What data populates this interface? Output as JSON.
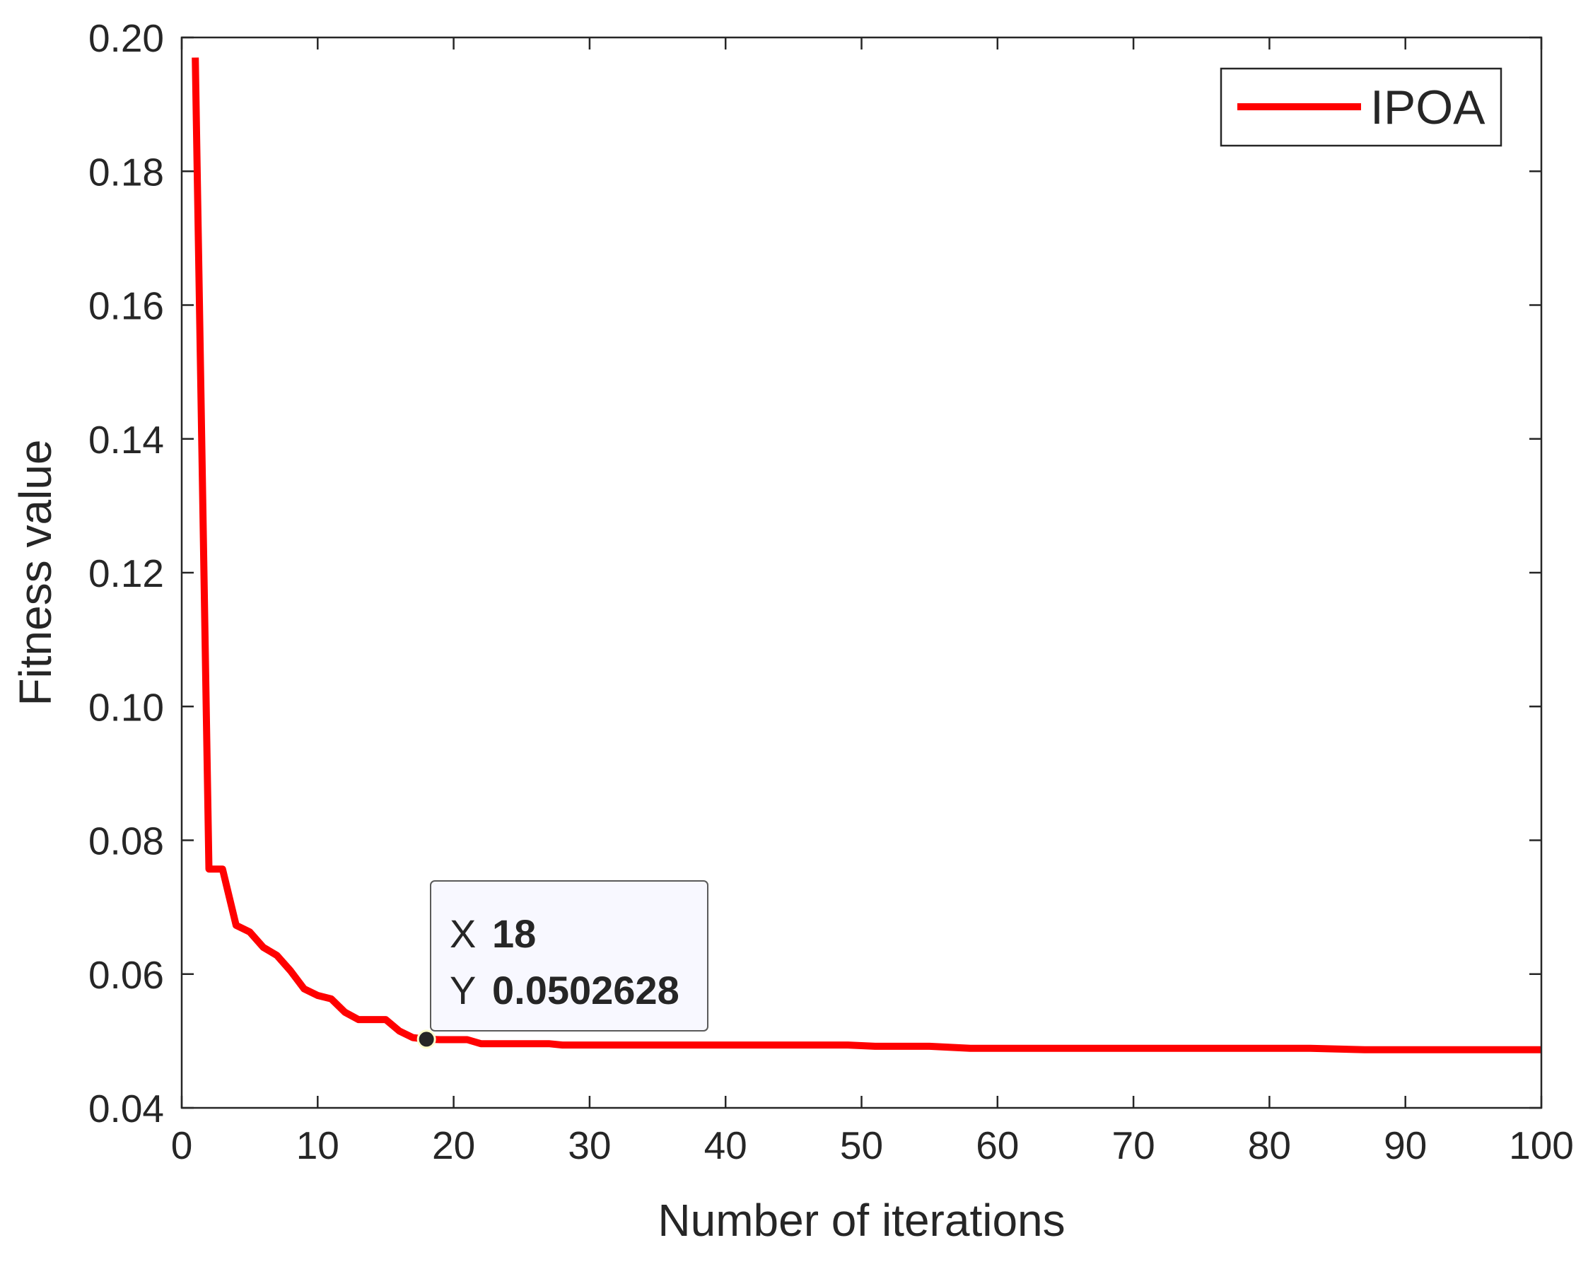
{
  "chart_data": {
    "type": "line",
    "title": "",
    "xlabel": "Number of iterations",
    "ylabel": "Fitness value",
    "xlim": [
      0,
      100
    ],
    "ylim": [
      0.04,
      0.2
    ],
    "xticks": [
      0,
      10,
      20,
      30,
      40,
      50,
      60,
      70,
      80,
      90,
      100
    ],
    "xtick_labels": [
      "0",
      "10",
      "20",
      "30",
      "40",
      "50",
      "60",
      "70",
      "80",
      "90",
      "100"
    ],
    "yticks": [
      0.04,
      0.06,
      0.08,
      0.1,
      0.12,
      0.14,
      0.16,
      0.18,
      0.2
    ],
    "ytick_labels": [
      "0.04",
      "0.06",
      "0.08",
      "0.10",
      "0.12",
      "0.14",
      "0.16",
      "0.18",
      "0.20"
    ],
    "grid": false,
    "legend_position": "top-right",
    "series": [
      {
        "name": "IPOA",
        "color": "#ff0000",
        "x": [
          1,
          2,
          3,
          4,
          5,
          6,
          7,
          8,
          9,
          10,
          11,
          12,
          13,
          14,
          15,
          16,
          17,
          18,
          19,
          20,
          21,
          22,
          25,
          27,
          28,
          30,
          35,
          40,
          45,
          49,
          51,
          55,
          58,
          60,
          70,
          80,
          83,
          87,
          90,
          100
        ],
        "y": [
          0.197,
          0.0757,
          0.0757,
          0.0673,
          0.0663,
          0.064,
          0.0628,
          0.0605,
          0.0578,
          0.0568,
          0.0563,
          0.0543,
          0.0532,
          0.0532,
          0.0532,
          0.0515,
          0.0505,
          0.0502628,
          0.0502,
          0.0502,
          0.0502,
          0.0496,
          0.0496,
          0.0496,
          0.0494,
          0.0494,
          0.0494,
          0.0494,
          0.0494,
          0.0494,
          0.0492,
          0.0492,
          0.0489,
          0.0489,
          0.0489,
          0.0489,
          0.0489,
          0.0487,
          0.0487,
          0.0487
        ]
      }
    ],
    "datatip": {
      "x_key": "X",
      "x_value": "18",
      "y_key": "Y",
      "y_value": "0.0502628",
      "x": 18,
      "y": 0.0502628,
      "value_color": "#0096ff"
    },
    "axis_color": "#262626",
    "background": "#ffffff"
  }
}
